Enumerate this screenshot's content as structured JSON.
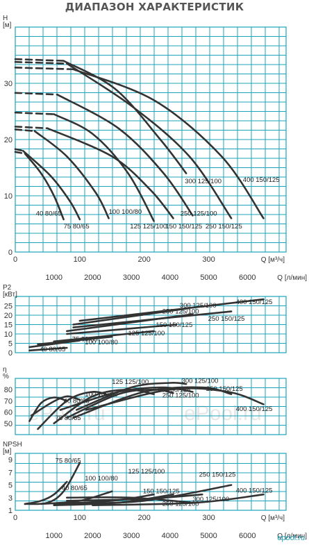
{
  "title": "ДИАПАЗОН ХАРАКТЕРИСТИК",
  "logo_text": "epool.ru",
  "watermark": "ePool.ru",
  "colors": {
    "grid": "#1aa3ba",
    "curve": "#333333",
    "text": "#333333"
  },
  "chart_data": [
    {
      "id": "head",
      "type": "line",
      "ylabel": "H [м]",
      "ylim": [
        0,
        40
      ],
      "yticks": [
        0,
        10,
        20,
        30
      ],
      "xlim": [
        0,
        420
      ],
      "xticks": [
        0,
        100,
        200,
        300
      ],
      "xlabel": "Q [м³/ч]",
      "x2ticks": [
        1000,
        2000,
        3000,
        4000,
        5000,
        6000
      ],
      "x2label": "Q [л/мин]",
      "grid": true,
      "series": [
        {
          "name": "40 80/65",
          "dash_x": [
            0,
            15
          ],
          "x": [
            15,
            40,
            60,
            75
          ],
          "y": [
            17.5,
            14,
            10,
            5.8
          ],
          "label_at": [
            32,
            6.5
          ]
        },
        {
          "name": "75 80/65",
          "dash_x": [
            0,
            12
          ],
          "x": [
            12,
            55,
            85,
            100
          ],
          "y": [
            18.0,
            13.5,
            9.0,
            5.8
          ],
          "label_at": [
            75,
            4.2
          ]
        },
        {
          "name": "100 100/80",
          "dash_x": [
            0,
            30
          ],
          "x": [
            30,
            80,
            125,
            145
          ],
          "y": [
            21.5,
            17,
            10.5,
            6.0
          ],
          "label_at": [
            145,
            6.8
          ]
        },
        {
          "name": "125 125/100",
          "dash_x": [
            0,
            60
          ],
          "x": [
            60,
            120,
            175,
            215
          ],
          "y": [
            24.5,
            21,
            14,
            5.5
          ],
          "label_at": [
            178,
            4.2
          ]
        },
        {
          "name": "150 150/125",
          "dash_x": [
            0,
            50
          ],
          "x": [
            50,
            150,
            210,
            245
          ],
          "y": [
            22.0,
            17,
            11,
            6.0
          ],
          "label_at": [
            233,
            4.2
          ]
        },
        {
          "name": "250 125/100",
          "dash_x": [
            0,
            65
          ],
          "x": [
            65,
            160,
            230,
            275
          ],
          "y": [
            28.0,
            22,
            14,
            6.5
          ],
          "label_at": [
            256,
            6.5
          ]
        },
        {
          "name": "250 150/125",
          "dash_x": [
            0,
            80
          ],
          "x": [
            80,
            180,
            270,
            335
          ],
          "y": [
            33.5,
            26,
            17,
            6.0
          ],
          "label_at": [
            295,
            4.2
          ]
        },
        {
          "name": "300 125/100",
          "dash_x": [
            0,
            75
          ],
          "x": [
            75,
            155,
            225,
            265
          ],
          "y": [
            34.0,
            29,
            20,
            14.0
          ],
          "label_at": [
            263,
            12.2
          ]
        },
        {
          "name": "400 150/125",
          "dash_x": [
            0,
            90
          ],
          "x": [
            90,
            215,
            320,
            385
          ],
          "y": [
            32.5,
            27,
            17,
            6.0
          ],
          "label_at": [
            353,
            12.5
          ]
        }
      ]
    },
    {
      "id": "power",
      "type": "line",
      "ylabel": "P2 [кВт]",
      "ylim": [
        0,
        30
      ],
      "yticks": [
        0,
        5,
        10,
        15,
        20,
        25
      ],
      "xlim": [
        0,
        420
      ],
      "grid": true,
      "series": [
        {
          "name": "40 80/65",
          "x": [
            22,
            80
          ],
          "y": [
            1.2,
            2.6
          ],
          "label_at": [
            38,
            0.8
          ]
        },
        {
          "name": "75 80/65",
          "x": [
            22,
            100
          ],
          "y": [
            3.0,
            6.5
          ],
          "label_at": [
            88,
            6.2
          ]
        },
        {
          "name": "100 100/80",
          "x": [
            35,
            150
          ],
          "y": [
            4.5,
            8.5
          ],
          "label_at": [
            108,
            4.5
          ]
        },
        {
          "name": "125 125/100",
          "x": [
            60,
            215
          ],
          "y": [
            6.0,
            11.5
          ],
          "label_at": [
            175,
            9.3
          ]
        },
        {
          "name": "150 150/125",
          "x": [
            80,
            250
          ],
          "y": [
            10.0,
            15.0
          ],
          "label_at": [
            218,
            13.7
          ]
        },
        {
          "name": "250 125/100",
          "x": [
            80,
            275
          ],
          "y": [
            11.5,
            20.5
          ],
          "label_at": [
            228,
            21.0
          ]
        },
        {
          "name": "250 150/125",
          "x": [
            90,
            335
          ],
          "y": [
            13.5,
            22.0
          ],
          "label_at": [
            299,
            17.0
          ]
        },
        {
          "name": "300 125/100",
          "x": [
            90,
            265
          ],
          "y": [
            15.0,
            23.5
          ],
          "label_at": [
            255,
            24.0
          ]
        },
        {
          "name": "400 150/125",
          "x": [
            100,
            385
          ],
          "y": [
            17.0,
            28.5
          ],
          "label_at": [
            342,
            26.0
          ]
        }
      ]
    },
    {
      "id": "efficiency",
      "type": "line",
      "ylabel": "η %",
      "ylim": [
        40,
        90
      ],
      "yticks": [
        50,
        60,
        70,
        80
      ],
      "xlim": [
        0,
        420
      ],
      "grid": true,
      "series": [
        {
          "name": "40 80/65",
          "x": [
            22,
            40,
            60,
            80
          ],
          "y": [
            52,
            68,
            73,
            70
          ],
          "label_at": [
            75,
            68
          ]
        },
        {
          "name": "75 80/65",
          "x": [
            25,
            55,
            80,
            100
          ],
          "y": [
            57,
            68,
            74,
            71
          ],
          "label_at": [
            62,
            53
          ]
        },
        {
          "name": "100 100/80",
          "x": [
            35,
            80,
            120,
            150
          ],
          "y": [
            45,
            70,
            78,
            74
          ],
          "label_at": [
            108,
            74
          ]
        },
        {
          "name": "125 125/100",
          "x": [
            60,
            120,
            175,
            215
          ],
          "y": [
            50,
            74,
            80,
            76
          ],
          "label_at": [
            150,
            85
          ]
        },
        {
          "name": "150 150/125",
          "x": [
            80,
            160,
            215,
            245
          ],
          "y": [
            55,
            76,
            80,
            77
          ],
          "label_at": [
            215,
            78
          ]
        },
        {
          "name": "250 125/100",
          "x": [
            70,
            160,
            230,
            275
          ],
          "y": [
            62,
            78,
            82,
            78
          ],
          "label_at": [
            228,
            73
          ]
        },
        {
          "name": "250 150/125",
          "x": [
            90,
            200,
            290,
            335
          ],
          "y": [
            55,
            78,
            82,
            76
          ],
          "label_at": [
            296,
            79
          ]
        },
        {
          "name": "300 125/100",
          "x": [
            95,
            180,
            240,
            265
          ],
          "y": [
            62,
            82,
            86,
            85
          ],
          "label_at": [
            258,
            86
          ]
        },
        {
          "name": "400 150/125",
          "x": [
            110,
            240,
            330,
            385
          ],
          "y": [
            62,
            80,
            78,
            67
          ],
          "label_at": [
            342,
            61
          ]
        }
      ]
    },
    {
      "id": "npsh",
      "type": "line",
      "ylabel": "NPSH [м]",
      "ylim": [
        1,
        10
      ],
      "yticks": [
        1,
        3,
        5,
        7,
        9
      ],
      "xlim": [
        0,
        420
      ],
      "xticks": [
        0,
        100,
        200,
        300
      ],
      "xlabel": "Q [м³/ч]",
      "x2ticks": [
        1000,
        2000,
        3000,
        4000,
        5000,
        6000
      ],
      "x2label": "Q [л/мин]",
      "grid": true,
      "series": [
        {
          "name": "75 80/65",
          "x": [
            15,
            50,
            75,
            100
          ],
          "y": [
            2.0,
            2.2,
            4.0,
            8.5
          ],
          "label_at": [
            62,
            8.5
          ]
        },
        {
          "name": "40 80/65",
          "x": [
            15,
            40,
            60,
            80
          ],
          "y": [
            2.0,
            2.5,
            3.5,
            5.5
          ],
          "label_at": [
            72,
            4.2
          ]
        },
        {
          "name": "100 100/80",
          "x": [
            40,
            100,
            150
          ],
          "y": [
            2.0,
            2.5,
            4.0
          ],
          "label_at": [
            108,
            5.7
          ]
        },
        {
          "name": "125 125/100",
          "x": [
            60,
            150,
            215
          ],
          "y": [
            2.0,
            2.5,
            3.5
          ],
          "label_at": [
            175,
            6.8
          ]
        },
        {
          "name": "150 150/125",
          "x": [
            60,
            160,
            245
          ],
          "y": [
            1.8,
            2.2,
            3.5
          ],
          "label_at": [
            198,
            3.7
          ]
        },
        {
          "name": "250 150/125",
          "x": [
            70,
            200,
            335
          ],
          "y": [
            2.0,
            2.5,
            5.0
          ],
          "label_at": [
            285,
            6.3
          ]
        },
        {
          "name": "300 125/100",
          "x": [
            80,
            200,
            290
          ],
          "y": [
            2.5,
            2.8,
            3.5
          ],
          "label_at": [
            275,
            2.4
          ]
        },
        {
          "name": "250 125/100",
          "x": [
            80,
            180,
            275
          ],
          "y": [
            3.0,
            3.0,
            2.2
          ],
          "label_at": [
            228,
            1.7
          ]
        },
        {
          "name": "400 150/125",
          "x": [
            120,
            280,
            385
          ],
          "y": [
            1.8,
            2.2,
            3.5
          ],
          "label_at": [
            342,
            3.8
          ]
        }
      ]
    }
  ]
}
